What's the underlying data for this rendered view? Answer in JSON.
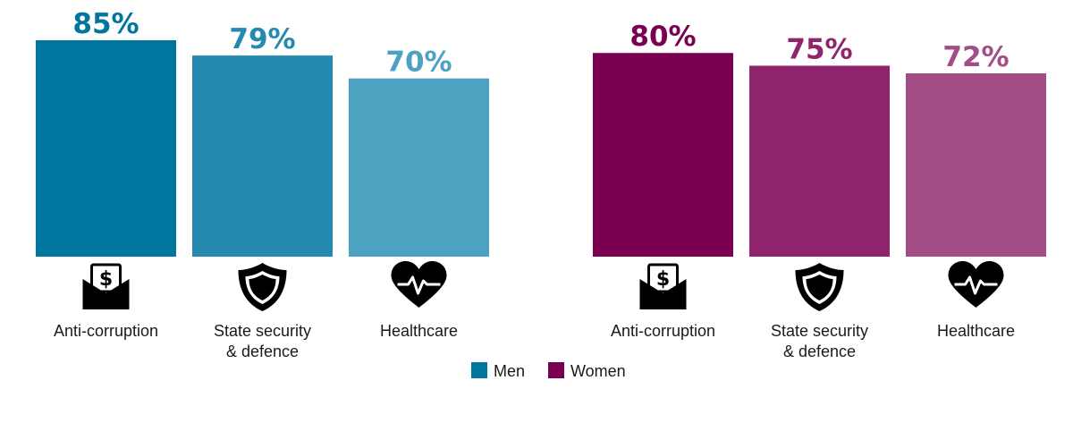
{
  "chart_data": [
    {
      "type": "bar",
      "series_name": "Men",
      "categories": [
        "Anti-corruption",
        "State security & defence",
        "Healthcare"
      ],
      "category_lines": [
        [
          "Anti-corruption"
        ],
        [
          "State security",
          "& defence"
        ],
        [
          "Healthcare"
        ]
      ],
      "icons": [
        "money-envelope-icon",
        "shield-icon",
        "heartbeat-icon"
      ],
      "values": [
        85,
        79,
        70
      ],
      "value_labels": [
        "85%",
        "79%",
        "70%"
      ],
      "colors": [
        "#00759e",
        "#2589b0",
        "#4da1c1"
      ],
      "ylim": [
        0,
        85
      ]
    },
    {
      "type": "bar",
      "series_name": "Women",
      "categories": [
        "Anti-corruption",
        "State security & defence",
        "Healthcare"
      ],
      "category_lines": [
        [
          "Anti-corruption"
        ],
        [
          "State security",
          "& defence"
        ],
        [
          "Healthcare"
        ]
      ],
      "icons": [
        "money-envelope-icon",
        "shield-icon",
        "heartbeat-icon"
      ],
      "values": [
        80,
        75,
        72
      ],
      "value_labels": [
        "80%",
        "75%",
        "72%"
      ],
      "colors": [
        "#7a0052",
        "#90246d",
        "#a24d86"
      ],
      "ylim": [
        0,
        85
      ]
    }
  ],
  "legend": [
    {
      "label": "Men",
      "color": "#00759e"
    },
    {
      "label": "Women",
      "color": "#7a0052"
    }
  ]
}
